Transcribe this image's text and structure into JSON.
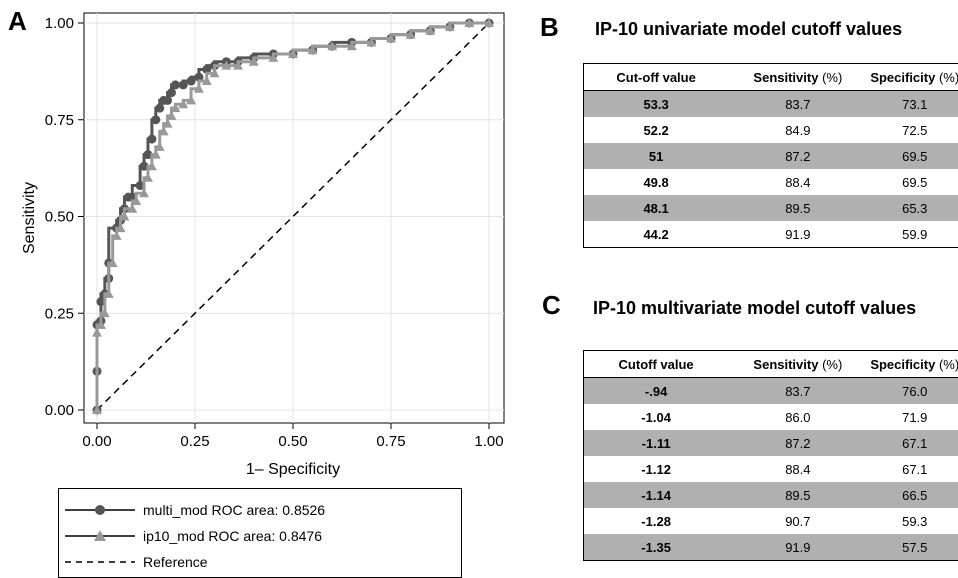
{
  "panels": {
    "a": "A",
    "b": "B",
    "c": "C"
  },
  "chart_data": {
    "type": "line",
    "xlabel": "1– Specificity",
    "ylabel": "Sensitivity",
    "xlim": [
      0,
      1
    ],
    "ylim": [
      0,
      1
    ],
    "xticks": [
      "0.00",
      "0.25",
      "0.50",
      "0.75",
      "1.00"
    ],
    "yticks": [
      "0.00",
      "0.25",
      "0.50",
      "0.75",
      "1.00"
    ],
    "grid": true,
    "legend_position": "bottom",
    "series": [
      {
        "name": "multi_mod ROC area: 0.8526",
        "color": "#555555",
        "marker": "circle",
        "x": [
          0,
          0,
          0,
          0.01,
          0.01,
          0.02,
          0.03,
          0.03,
          0.05,
          0.06,
          0.07,
          0.08,
          0.09,
          0.11,
          0.12,
          0.13,
          0.14,
          0.15,
          0.16,
          0.17,
          0.18,
          0.19,
          0.2,
          0.22,
          0.24,
          0.26,
          0.28,
          0.3,
          0.33,
          0.36,
          0.4,
          0.45,
          0.5,
          0.55,
          0.6,
          0.65,
          0.7,
          0.75,
          0.8,
          0.85,
          0.9,
          0.95,
          1.0
        ],
        "y": [
          0,
          0.1,
          0.22,
          0.23,
          0.28,
          0.3,
          0.34,
          0.38,
          0.47,
          0.49,
          0.52,
          0.55,
          0.55,
          0.58,
          0.63,
          0.66,
          0.7,
          0.75,
          0.78,
          0.8,
          0.8,
          0.82,
          0.84,
          0.84,
          0.85,
          0.86,
          0.88,
          0.89,
          0.9,
          0.9,
          0.91,
          0.92,
          0.92,
          0.93,
          0.94,
          0.95,
          0.95,
          0.96,
          0.97,
          0.98,
          0.99,
          1.0,
          1.0
        ]
      },
      {
        "name": "ip10_mod ROC area: 0.8476",
        "color": "#999999",
        "marker": "triangle",
        "x": [
          0,
          0,
          0.01,
          0.02,
          0.03,
          0.04,
          0.05,
          0.06,
          0.07,
          0.09,
          0.1,
          0.12,
          0.13,
          0.14,
          0.15,
          0.16,
          0.17,
          0.18,
          0.19,
          0.2,
          0.22,
          0.24,
          0.26,
          0.28,
          0.3,
          0.33,
          0.36,
          0.4,
          0.45,
          0.5,
          0.55,
          0.6,
          0.65,
          0.7,
          0.75,
          0.8,
          0.85,
          0.9,
          0.95,
          1.0
        ],
        "y": [
          0,
          0.2,
          0.22,
          0.25,
          0.3,
          0.38,
          0.45,
          0.47,
          0.5,
          0.52,
          0.54,
          0.56,
          0.6,
          0.63,
          0.66,
          0.68,
          0.72,
          0.74,
          0.76,
          0.78,
          0.79,
          0.8,
          0.83,
          0.85,
          0.87,
          0.89,
          0.89,
          0.9,
          0.91,
          0.92,
          0.93,
          0.94,
          0.94,
          0.95,
          0.96,
          0.97,
          0.98,
          0.99,
          1.0,
          1.0
        ]
      },
      {
        "name": "Reference",
        "color": "#000000",
        "dash": true,
        "x": [
          0,
          1
        ],
        "y": [
          0,
          1
        ]
      }
    ]
  },
  "table_b": {
    "title": "IP-10 univariate model cutoff values",
    "headers": [
      {
        "main": "Cut-off value",
        "unit": ""
      },
      {
        "main": "Sensitivity",
        "unit": " (%)"
      },
      {
        "main": "Specificity",
        "unit": " (%)"
      }
    ],
    "rows": [
      [
        "53.3",
        "83.7",
        "73.1"
      ],
      [
        "52.2",
        "84.9",
        "72.5"
      ],
      [
        "51",
        "87.2",
        "69.5"
      ],
      [
        "49.8",
        "88.4",
        "69.5"
      ],
      [
        "48.1",
        "89.5",
        "65.3"
      ],
      [
        "44.2",
        "91.9",
        "59.9"
      ]
    ]
  },
  "table_c": {
    "title": "IP-10 multivariate model cutoff values",
    "headers": [
      {
        "main": "Cutoff value",
        "unit": ""
      },
      {
        "main": "Sensitivity",
        "unit": " (%)"
      },
      {
        "main": "Specificity",
        "unit": " (%)"
      }
    ],
    "rows": [
      [
        "-.94",
        "83.7",
        "76.0"
      ],
      [
        "-1.04",
        "86.0",
        "71.9"
      ],
      [
        "-1.11",
        "87.2",
        "67.1"
      ],
      [
        "-1.12",
        "88.4",
        "67.1"
      ],
      [
        "-1.14",
        "89.5",
        "66.5"
      ],
      [
        "-1.28",
        "90.7",
        "59.3"
      ],
      [
        "-1.35",
        "91.9",
        "57.5"
      ]
    ]
  }
}
